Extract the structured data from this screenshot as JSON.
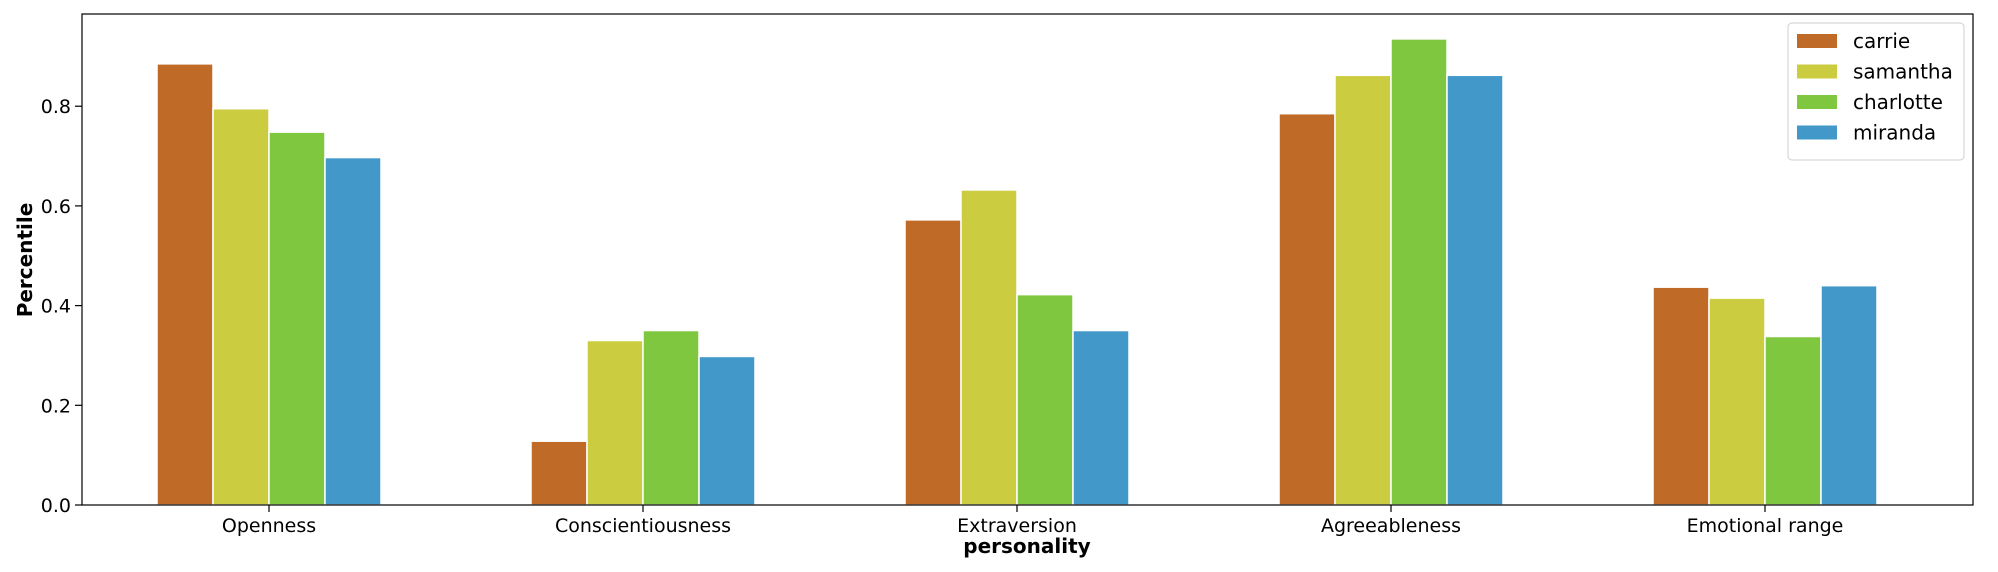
{
  "chart_data": {
    "type": "bar",
    "xlabel": "personality",
    "ylabel": "Percentile",
    "categories": [
      "Openness",
      "Conscientiousness",
      "Extraversion",
      "Agreeableness",
      "Emotional range"
    ],
    "series": [
      {
        "name": "carrie",
        "color": "#c06a28",
        "values": [
          0.885,
          0.128,
          0.572,
          0.785,
          0.437
        ]
      },
      {
        "name": "samantha",
        "color": "#cccc40",
        "values": [
          0.795,
          0.33,
          0.632,
          0.862,
          0.415
        ]
      },
      {
        "name": "charlotte",
        "color": "#7fc73e",
        "values": [
          0.748,
          0.35,
          0.422,
          0.935,
          0.338
        ]
      },
      {
        "name": "miranda",
        "color": "#4198c9",
        "values": [
          0.697,
          0.298,
          0.35,
          0.862,
          0.44
        ]
      }
    ],
    "ylim": [
      0,
      0.985
    ],
    "yticks": [
      0.0,
      0.2,
      0.4,
      0.6,
      0.8
    ],
    "ytick_labels": [
      "0.0",
      "0.2",
      "0.4",
      "0.6",
      "0.8"
    ],
    "legend_position": "top-right",
    "grid": false
  }
}
